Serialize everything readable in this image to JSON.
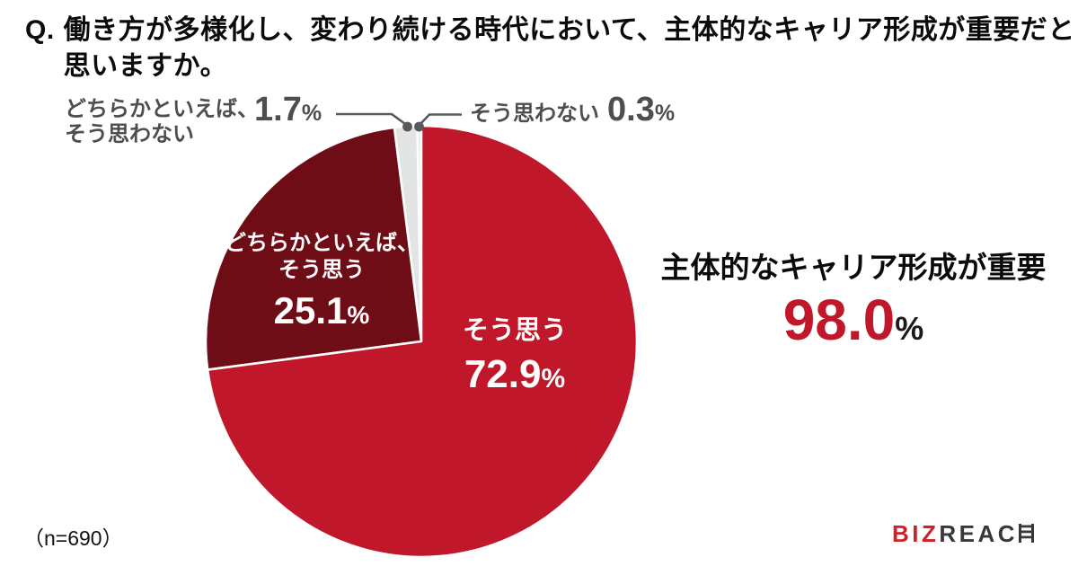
{
  "header": {
    "q_prefix": "Q.",
    "line1": "働き方が多様化し、変わり続ける時代において、主体的なキャリア形成が重要だと",
    "line2": "思いますか。"
  },
  "chart_data": {
    "type": "pie",
    "title": "働き方が多様化し、変わり続ける時代において、主体的なキャリア形成が重要だと思いますか。",
    "unit": "%",
    "start_angle_deg": 0,
    "direction": "clockwise",
    "percent_sign": "%",
    "slices": [
      {
        "label": "そう思う",
        "value": 72.9,
        "value_text": "72.9",
        "color": "#C0182A",
        "label_color": "#FFFFFF",
        "label_position": "inside"
      },
      {
        "label": "どちらかといえば、そう思う",
        "label_lines": [
          "どちらかといえば、",
          "そう思う"
        ],
        "value": 25.1,
        "value_text": "25.1",
        "color": "#6F0D17",
        "label_color": "#FFFFFF",
        "label_position": "inside"
      },
      {
        "label": "どちらかといえば、そう思わない",
        "label_lines": [
          "どちらかといえば、",
          "そう思わない"
        ],
        "value": 1.7,
        "value_text": "1.7",
        "color": "#E3E4E4",
        "label_color": "#4D4E50",
        "label_position": "callout-left"
      },
      {
        "label": "そう思わない",
        "value": 0.3,
        "value_text": "0.3",
        "color": "#E3E4E4",
        "label_color": "#4D4E50",
        "label_position": "callout-right"
      }
    ],
    "annotation": {
      "label": "主体的なキャリア形成が重要",
      "value": 98.0,
      "value_text": "98.0"
    },
    "sample_size_note": "（n=690）",
    "legend": "none",
    "colors": {
      "accent_red": "#C0182A",
      "dark_red": "#6F0D17",
      "light_gray_slice": "#E3E4E4",
      "callout_text_gray": "#4D4E50",
      "leader_line_gray": "#58595B"
    }
  },
  "footer": {
    "logo": {
      "part_red": "BIZ",
      "part_dark": "REAC",
      "ladder_letter_represents": "H",
      "logo_red": "#CE2026",
      "logo_dark": "#3B3738"
    }
  }
}
